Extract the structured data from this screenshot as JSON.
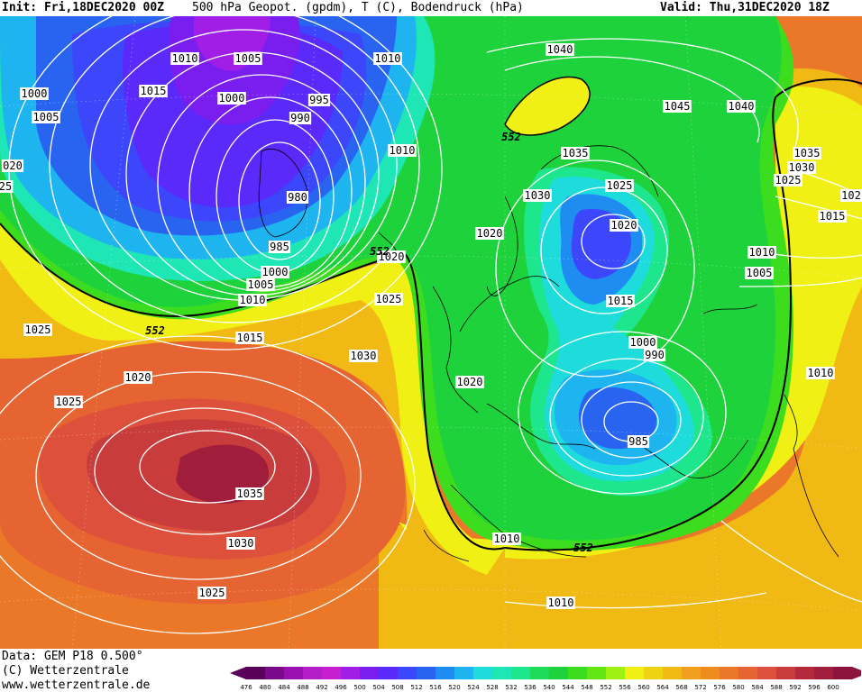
{
  "header": {
    "init": "Init: Fri,18DEC2020 00Z",
    "title": "500 hPa Geopot. (gpdm), T (C), Bodendruck (hPa)",
    "valid": "Valid: Thu,31DEC2020 18Z"
  },
  "footer": {
    "data": "Data: GEM P18 0.500°",
    "copyright": "(C) Wetterzentrale",
    "url": "www.wetterzentrale.de"
  },
  "legend": {
    "values": [
      "476",
      "480",
      "484",
      "488",
      "492",
      "496",
      "500",
      "504",
      "508",
      "512",
      "516",
      "520",
      "524",
      "528",
      "532",
      "536",
      "540",
      "544",
      "548",
      "552",
      "556",
      "560",
      "564",
      "568",
      "572",
      "576",
      "580",
      "584",
      "588",
      "592",
      "596",
      "600"
    ],
    "colors": [
      "#5a005a",
      "#7a0a8a",
      "#9a0fb0",
      "#b41ec8",
      "#c81ed2",
      "#a01ee6",
      "#7a1ef0",
      "#5a2afa",
      "#3c46fa",
      "#2864f0",
      "#1e8cf0",
      "#1eb4f0",
      "#1edcdc",
      "#1ee6b4",
      "#1ee68c",
      "#1edc5a",
      "#1ed23c",
      "#3cdc1e",
      "#64e614",
      "#a0f014",
      "#f0f014",
      "#f0d214",
      "#f0b914",
      "#f0a01e",
      "#ee8c1e",
      "#eb7828",
      "#e66432",
      "#dc503c",
      "#c83c3c",
      "#b4283c",
      "#a01e3c",
      "#8c143c"
    ]
  },
  "map": {
    "colors": {
      "deep_purple": "#7a1ef0",
      "purple": "#5a2afa",
      "blue": "#2864f0",
      "cyan": "#1eb4f0",
      "teal": "#1ee6b4",
      "green": "#1ed23c",
      "bright_green": "#3cdc1e",
      "yellow_green": "#a0f014",
      "yellow": "#f0f014",
      "gold": "#f0b914",
      "orange": "#ee8c1e",
      "dark_orange": "#eb7828",
      "red_orange": "#e66432",
      "red": "#c83c3c",
      "dark_red": "#a01e3c"
    },
    "isobar_labels": [
      {
        "text": "1010",
        "id": "iso-1010-a"
      },
      {
        "text": "1005",
        "id": "iso-1005-a"
      },
      {
        "text": "1010",
        "id": "iso-1010-b"
      },
      {
        "text": "1040",
        "id": "iso-1040-a"
      },
      {
        "text": "1000",
        "id": "iso-1000-a"
      },
      {
        "text": "1015",
        "id": "iso-1015-a"
      },
      {
        "text": "1000",
        "id": "iso-1000-b"
      },
      {
        "text": "995",
        "id": "iso-995-a"
      },
      {
        "text": "1005",
        "id": "iso-1005-b"
      },
      {
        "text": "990",
        "id": "iso-990-a"
      },
      {
        "text": "1045",
        "id": "iso-1045-a"
      },
      {
        "text": "1040",
        "id": "iso-1040-b"
      },
      {
        "text": "020",
        "id": "iso-020-a"
      },
      {
        "text": "1010",
        "id": "iso-1010-c"
      },
      {
        "text": "1035",
        "id": "iso-1035-a"
      },
      {
        "text": "1035",
        "id": "iso-1035-b"
      },
      {
        "text": "1030",
        "id": "iso-1030-a"
      },
      {
        "text": "25",
        "id": "iso-25-a"
      },
      {
        "text": "1025",
        "id": "iso-1025-a"
      },
      {
        "text": "1025",
        "id": "iso-1025-b"
      },
      {
        "text": "980",
        "id": "iso-980-a"
      },
      {
        "text": "1030",
        "id": "iso-1030-b"
      },
      {
        "text": "102",
        "id": "iso-102-a"
      },
      {
        "text": "1015",
        "id": "iso-1015-b"
      },
      {
        "text": "1020",
        "id": "iso-1020-a"
      },
      {
        "text": "1020",
        "id": "iso-1020-b"
      },
      {
        "text": "985",
        "id": "iso-985-a"
      },
      {
        "text": "1020",
        "id": "iso-1020-c"
      },
      {
        "text": "1010",
        "id": "iso-1010-d"
      },
      {
        "text": "1000",
        "id": "iso-1000-c"
      },
      {
        "text": "1005",
        "id": "iso-1005-c"
      },
      {
        "text": "1005",
        "id": "iso-1005-d"
      },
      {
        "text": "1010",
        "id": "iso-1010-e"
      },
      {
        "text": "1025",
        "id": "iso-1025-c"
      },
      {
        "text": "1015",
        "id": "iso-1015-c"
      },
      {
        "text": "1025",
        "id": "iso-1025-d"
      },
      {
        "text": "1015",
        "id": "iso-1015-d"
      },
      {
        "text": "1000",
        "id": "iso-1000-d"
      },
      {
        "text": "990",
        "id": "iso-990-b"
      },
      {
        "text": "1030",
        "id": "iso-1030-c"
      },
      {
        "text": "1020",
        "id": "iso-1020-d"
      },
      {
        "text": "1010",
        "id": "iso-1010-f"
      },
      {
        "text": "1020",
        "id": "iso-1020-e"
      },
      {
        "text": "1025",
        "id": "iso-1025-e"
      },
      {
        "text": "985",
        "id": "iso-985-b"
      },
      {
        "text": "1035",
        "id": "iso-1035-c"
      },
      {
        "text": "1010",
        "id": "iso-1010-g"
      },
      {
        "text": "1030",
        "id": "iso-1030-d"
      },
      {
        "text": "1025",
        "id": "iso-1025-f"
      },
      {
        "text": "1010",
        "id": "iso-1010-h"
      }
    ],
    "geopot_labels": [
      {
        "text": "552",
        "id": "g552-a"
      },
      {
        "text": "552",
        "id": "g552-b"
      },
      {
        "text": "552",
        "id": "g552-c"
      },
      {
        "text": "552",
        "id": "g552-d"
      }
    ]
  }
}
